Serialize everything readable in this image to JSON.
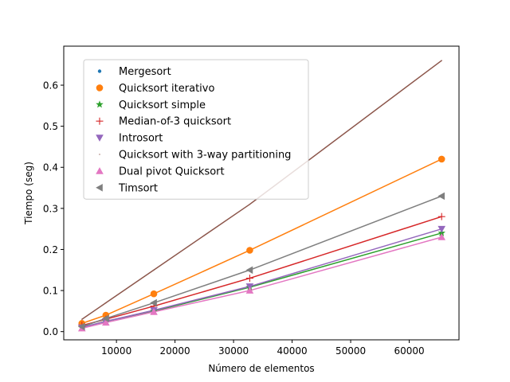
{
  "chart_data": {
    "type": "line",
    "title": "",
    "xlabel": "Número de elementos",
    "ylabel": "Tiempo (seg)",
    "xlim": [
      1000,
      68500
    ],
    "ylim": [
      -0.02,
      0.695
    ],
    "x_ticks": [
      10000,
      20000,
      30000,
      40000,
      50000,
      60000
    ],
    "x_tick_labels": [
      "10000",
      "20000",
      "30000",
      "40000",
      "50000",
      "60000"
    ],
    "y_ticks": [
      0.0,
      0.1,
      0.2,
      0.3,
      0.4,
      0.5,
      0.6
    ],
    "y_tick_labels": [
      "0.0",
      "0.1",
      "0.2",
      "0.3",
      "0.4",
      "0.5",
      "0.6"
    ],
    "grid": false,
    "legend_position": "upper-left",
    "x": [
      4096,
      8192,
      16384,
      32768,
      65536
    ],
    "series": [
      {
        "name": "Mergesort",
        "color": "#1f77b4",
        "marker": "point",
        "show_line": false,
        "values": [
          0.01,
          0.025,
          0.05,
          0.11,
          0.24
        ]
      },
      {
        "name": "Quicksort iterativo",
        "color": "#ff7f0e",
        "marker": "circle",
        "show_line": true,
        "values": [
          0.02,
          0.04,
          0.092,
          0.198,
          0.42
        ]
      },
      {
        "name": "Quicksort simple",
        "color": "#2ca02c",
        "marker": "star",
        "show_line": true,
        "values": [
          0.01,
          0.025,
          0.05,
          0.108,
          0.24
        ]
      },
      {
        "name": "Median-of-3 quicksort",
        "color": "#d62728",
        "marker": "plus",
        "show_line": true,
        "values": [
          0.015,
          0.03,
          0.062,
          0.13,
          0.28
        ]
      },
      {
        "name": "Introsort",
        "color": "#9467bd",
        "marker": "triangle-down",
        "show_line": true,
        "values": [
          0.01,
          0.025,
          0.052,
          0.11,
          0.25
        ]
      },
      {
        "name": "Quicksort with 3-way partitioning",
        "color": "#8c564b",
        "marker": "pixel",
        "show_line": true,
        "values": [
          0.03,
          0.07,
          0.15,
          0.31,
          0.66
        ]
      },
      {
        "name": "Dual pivot Quicksort",
        "color": "#e377c2",
        "marker": "triangle-up",
        "show_line": true,
        "values": [
          0.008,
          0.022,
          0.048,
          0.1,
          0.23
        ]
      },
      {
        "name": "Timsort",
        "color": "#7f7f7f",
        "marker": "triangle-left",
        "show_line": true,
        "values": [
          0.012,
          0.032,
          0.07,
          0.15,
          0.33
        ]
      }
    ]
  }
}
